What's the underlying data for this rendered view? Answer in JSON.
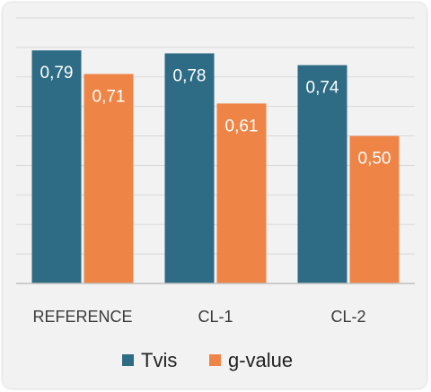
{
  "chart_data": {
    "type": "bar",
    "title": "",
    "xlabel": "",
    "ylabel": "",
    "categories": [
      "REFERENCE",
      "CL-1",
      "CL-2"
    ],
    "series": [
      {
        "name": "Tvis",
        "color": "#2e6b85",
        "values": [
          0.79,
          0.78,
          0.74
        ],
        "labels": [
          "0,79",
          "0,78",
          "0,74"
        ]
      },
      {
        "name": "g-value",
        "color": "#ee8446",
        "values": [
          0.71,
          0.61,
          0.5
        ],
        "labels": [
          "0,71",
          "0,61",
          "0,50"
        ]
      }
    ],
    "ylim": [
      0,
      0.9
    ],
    "gridlines": true,
    "legend_position": "bottom"
  }
}
